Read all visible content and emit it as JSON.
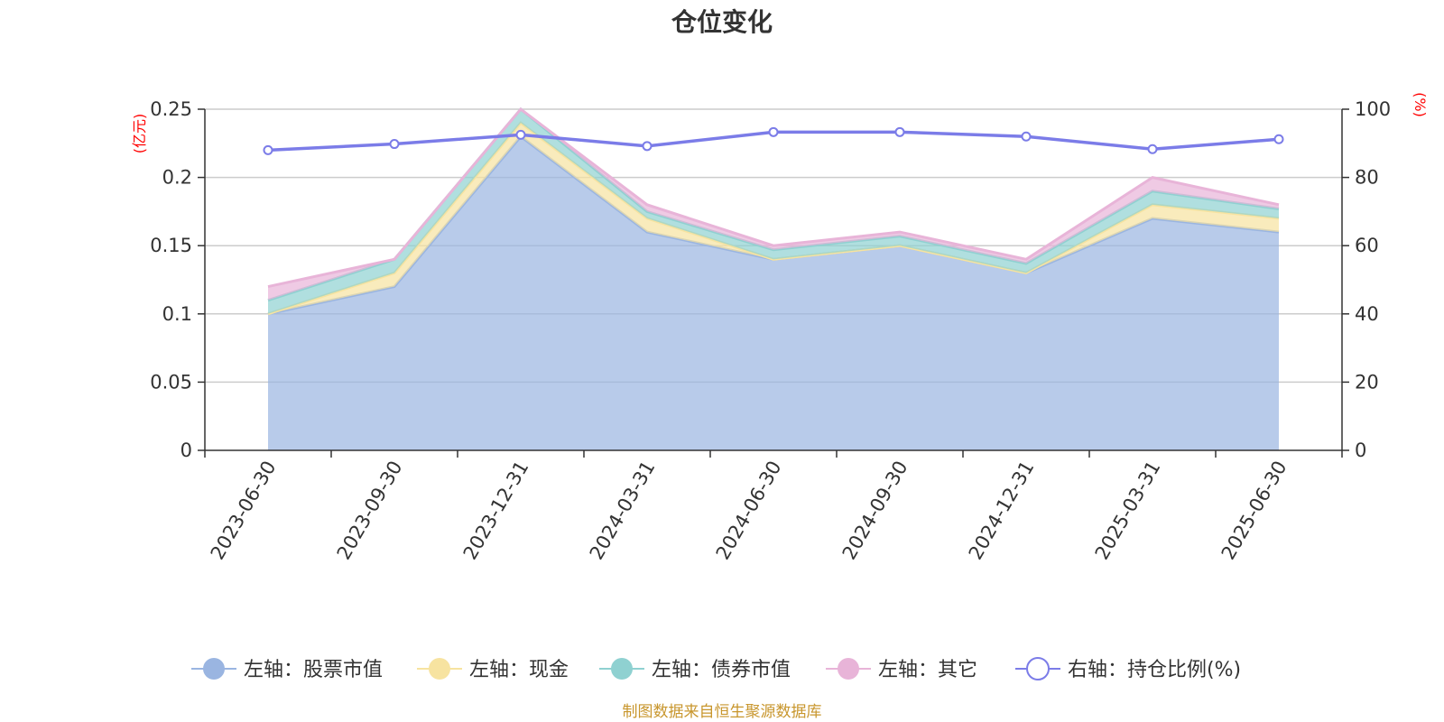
{
  "chart_data": {
    "type": "area",
    "title": "仓位变化",
    "x": [
      "2023-06-30",
      "2023-09-30",
      "2023-12-31",
      "2024-03-31",
      "2024-06-30",
      "2024-09-30",
      "2024-12-31",
      "2025-03-31",
      "2025-06-30"
    ],
    "left_axis": {
      "unit": "(亿元)",
      "ylim": [
        0,
        0.25
      ],
      "ticks": [
        "0",
        "0.05",
        "0.1",
        "0.15",
        "0.2",
        "0.25"
      ],
      "stacked": true
    },
    "right_axis": {
      "unit": "(%)",
      "ylim": [
        0,
        100
      ],
      "ticks": [
        "0",
        "20",
        "40",
        "60",
        "80",
        "100"
      ]
    },
    "series": [
      {
        "name": "左轴：股票市值",
        "axis": "left",
        "type": "area",
        "color": "#9ab5e1",
        "values": [
          0.1,
          0.12,
          0.23,
          0.16,
          0.14,
          0.15,
          0.13,
          0.17,
          0.16
        ]
      },
      {
        "name": "左轴：现金",
        "axis": "left",
        "type": "area",
        "color": "#f7e3a0",
        "values": [
          0.0,
          0.01,
          0.01,
          0.01,
          0.0,
          0.0,
          0.0,
          0.01,
          0.01
        ]
      },
      {
        "name": "左轴：债券市值",
        "axis": "left",
        "type": "area",
        "color": "#8fd1d1",
        "values": [
          0.01,
          0.01,
          0.01,
          0.005,
          0.007,
          0.007,
          0.007,
          0.01,
          0.007
        ]
      },
      {
        "name": "左轴：其它",
        "axis": "left",
        "type": "area",
        "color": "#e8b4d8",
        "values": [
          0.01,
          0.0,
          0.0,
          0.005,
          0.003,
          0.003,
          0.003,
          0.01,
          0.003
        ]
      },
      {
        "name": "右轴：持仓比例(%)",
        "axis": "right",
        "type": "line",
        "color": "#7b7ce8",
        "values": [
          88,
          89.8,
          92.5,
          89.2,
          93.3,
          93.3,
          92,
          88.3,
          91.2
        ]
      }
    ],
    "grid": true,
    "legend_position": "bottom"
  },
  "footer": {
    "source": "制图数据来自恒生聚源数据库"
  }
}
